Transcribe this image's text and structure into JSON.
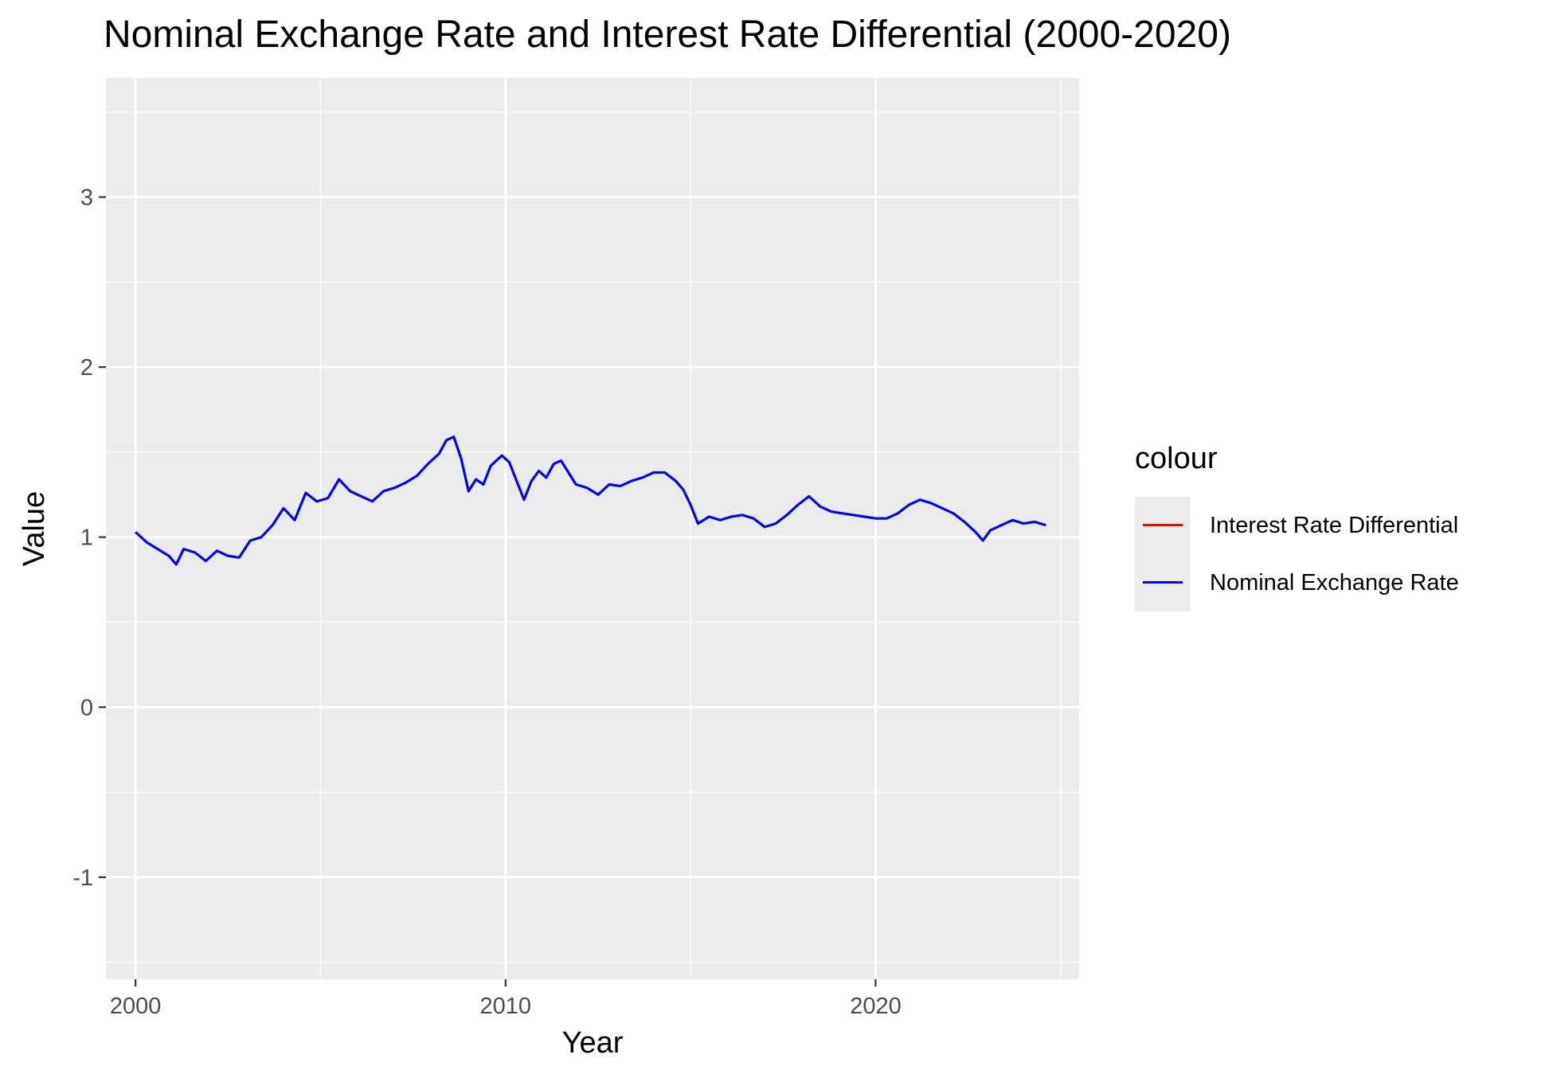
{
  "chart_data": {
    "type": "line",
    "title": "Nominal Exchange Rate and Interest Rate Differential (2000-2020)",
    "xlabel": "Year",
    "ylabel": "Value",
    "xlim": [
      1999.2,
      2025.5
    ],
    "ylim": [
      -1.6,
      3.7
    ],
    "x_ticks": [
      2000,
      2010,
      2020
    ],
    "y_ticks": [
      -1,
      0,
      1,
      2,
      3
    ],
    "grid": true,
    "legend_position": "right",
    "legend_title": "colour",
    "series": [
      {
        "name": "Interest Rate Differential",
        "color": "#ff0000",
        "x": [],
        "y": []
      },
      {
        "name": "Nominal Exchange Rate",
        "color": "#0000ff",
        "x": [
          2000.0,
          2000.3,
          2000.6,
          2000.9,
          2001.1,
          2001.3,
          2001.6,
          2001.9,
          2002.2,
          2002.5,
          2002.8,
          2003.1,
          2003.4,
          2003.7,
          2004.0,
          2004.3,
          2004.6,
          2004.9,
          2005.2,
          2005.5,
          2005.8,
          2006.1,
          2006.4,
          2006.7,
          2007.0,
          2007.3,
          2007.6,
          2007.9,
          2008.2,
          2008.4,
          2008.6,
          2008.8,
          2009.0,
          2009.2,
          2009.4,
          2009.6,
          2009.9,
          2010.1,
          2010.3,
          2010.5,
          2010.7,
          2010.9,
          2011.1,
          2011.3,
          2011.5,
          2011.7,
          2011.9,
          2012.2,
          2012.5,
          2012.8,
          2013.1,
          2013.4,
          2013.7,
          2014.0,
          2014.3,
          2014.6,
          2014.8,
          2015.0,
          2015.2,
          2015.5,
          2015.8,
          2016.1,
          2016.4,
          2016.7,
          2017.0,
          2017.3,
          2017.6,
          2017.9,
          2018.2,
          2018.5,
          2018.8,
          2019.1,
          2019.4,
          2019.7,
          2020.0,
          2020.3,
          2020.6,
          2020.9,
          2021.2,
          2021.5,
          2021.8,
          2022.1,
          2022.4,
          2022.7,
          2022.9,
          2023.1,
          2023.4,
          2023.7,
          2024.0,
          2024.3,
          2024.6
        ],
        "y": [
          1.03,
          0.97,
          0.93,
          0.89,
          0.84,
          0.93,
          0.91,
          0.86,
          0.92,
          0.89,
          0.88,
          0.98,
          1.0,
          1.07,
          1.17,
          1.1,
          1.26,
          1.21,
          1.23,
          1.34,
          1.27,
          1.24,
          1.21,
          1.27,
          1.29,
          1.32,
          1.36,
          1.43,
          1.49,
          1.57,
          1.59,
          1.46,
          1.27,
          1.34,
          1.31,
          1.42,
          1.48,
          1.44,
          1.33,
          1.22,
          1.33,
          1.39,
          1.35,
          1.43,
          1.45,
          1.38,
          1.31,
          1.29,
          1.25,
          1.31,
          1.3,
          1.33,
          1.35,
          1.38,
          1.38,
          1.33,
          1.28,
          1.19,
          1.08,
          1.12,
          1.1,
          1.12,
          1.13,
          1.11,
          1.06,
          1.08,
          1.13,
          1.19,
          1.24,
          1.18,
          1.15,
          1.14,
          1.13,
          1.12,
          1.11,
          1.11,
          1.14,
          1.19,
          1.22,
          1.2,
          1.17,
          1.14,
          1.09,
          1.03,
          0.98,
          1.04,
          1.07,
          1.1,
          1.08,
          1.09,
          1.07
        ]
      }
    ]
  }
}
